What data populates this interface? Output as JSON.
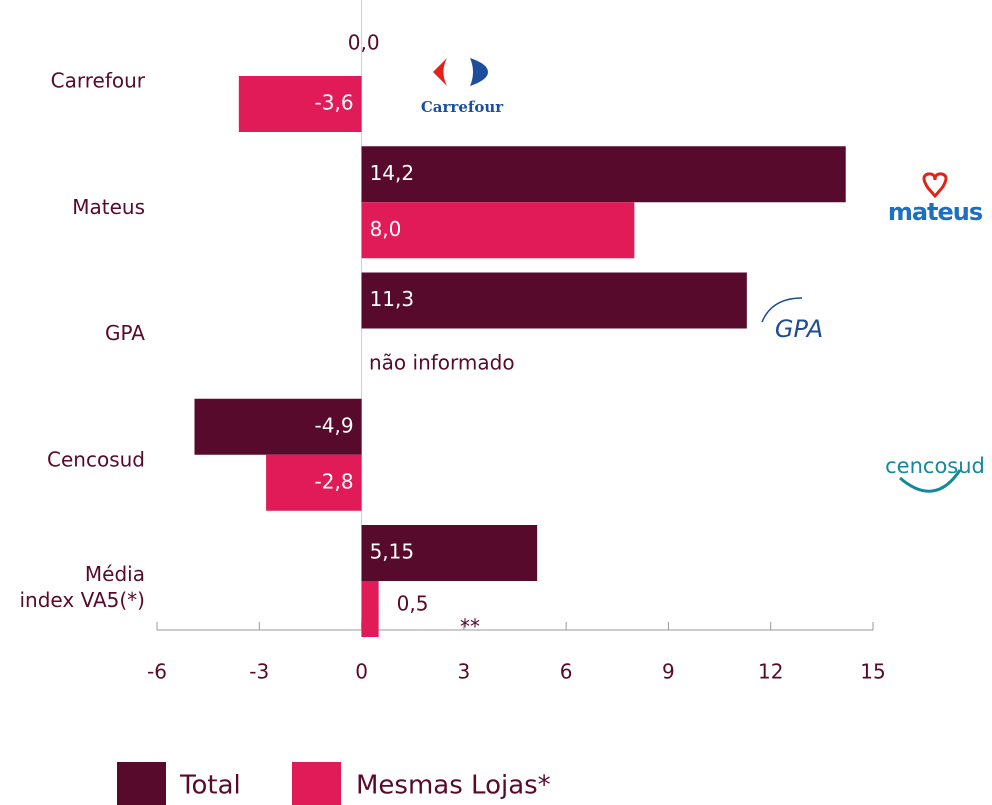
{
  "chart_data": {
    "type": "barh",
    "categories": [
      "Carrefour",
      "Mateus",
      "GPA",
      "Cencosud",
      "Média index VA5(*)"
    ],
    "series": [
      {
        "name": "Total",
        "color": "#570a2b",
        "values": [
          0.0,
          14.2,
          11.3,
          -4.9,
          5.15
        ],
        "value_labels": [
          "0,0",
          "14,2",
          "11,3",
          "-4,9",
          "5,15"
        ]
      },
      {
        "name": "Mesmas Lojas*",
        "color": "#e01b57",
        "values": [
          -3.6,
          8.0,
          null,
          -2.8,
          0.5
        ],
        "value_labels": [
          "-3,6",
          "8,0",
          null,
          "-2,8",
          "0,5"
        ]
      }
    ],
    "xlim": [
      -6,
      15
    ],
    "xticks": [
      -6,
      -3,
      0,
      3,
      6,
      9,
      12,
      15
    ],
    "annotations": [
      "não informado",
      "**"
    ],
    "logos": [
      "Carrefour",
      "mateus",
      "GPA",
      "cencosud"
    ]
  }
}
